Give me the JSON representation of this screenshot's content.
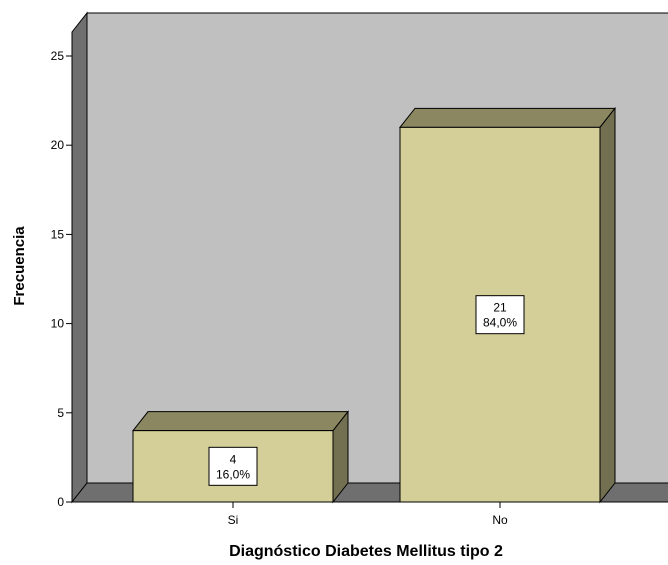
{
  "chart_data": {
    "type": "bar",
    "style": "3d",
    "xlabel": "Diagnóstico Diabetes Mellitus tipo 2",
    "ylabel": "Frecuencia",
    "ylim": [
      0,
      25
    ],
    "yticks": [
      "0",
      "5",
      "10",
      "15",
      "20",
      "25"
    ],
    "categories": [
      "Si",
      "No"
    ],
    "values": [
      4,
      21
    ],
    "data_labels": [
      {
        "count": "4",
        "percent": "16,0%"
      },
      {
        "count": "21",
        "percent": "84,0%"
      }
    ],
    "grid": false,
    "legend": "none",
    "colors": {
      "back_wall": "#c0c0c0",
      "side_wall": "#6f6f6f",
      "floor": "#6f6f6f",
      "bar_front": "#d4cf98",
      "bar_top": "#8b8760",
      "bar_side": "#737052",
      "outline": "#000000"
    }
  }
}
